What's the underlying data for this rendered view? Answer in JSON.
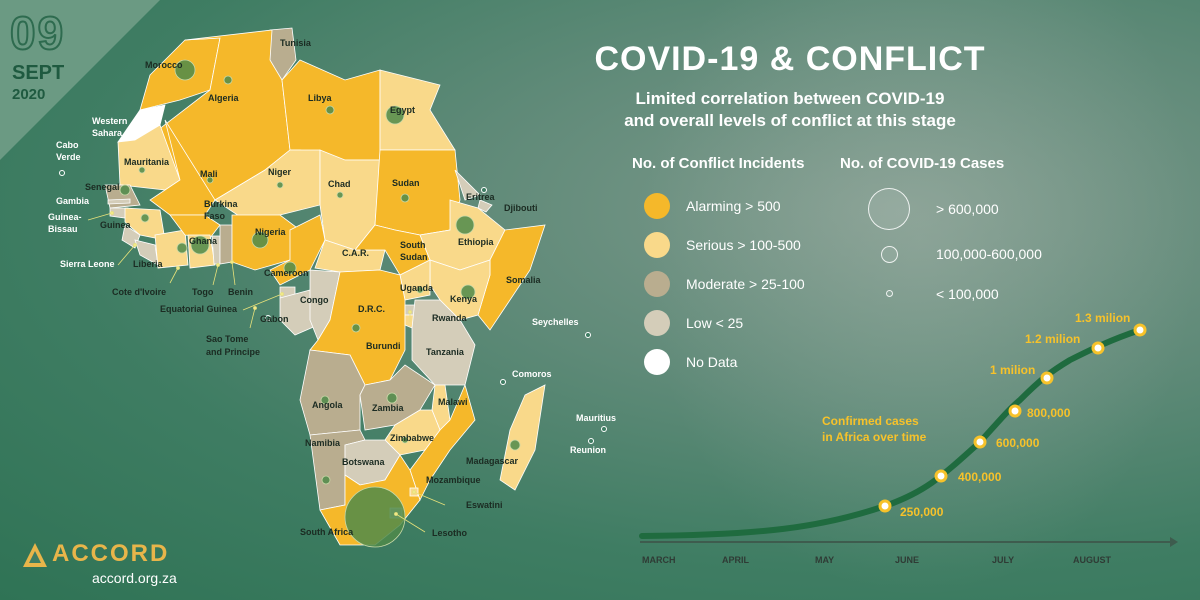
{
  "date": {
    "day": "09",
    "month": "SEPT",
    "year": "2020"
  },
  "title": "COVID-19 & CONFLICT",
  "subtitle_lines": [
    "Limited correlation between COVID-19",
    "and overall levels of conflict at this stage"
  ],
  "colors": {
    "alarming": "#f5b82a",
    "serious": "#f9d98a",
    "moderate": "#b9ad8f",
    "low": "#d4cdb9",
    "no_data": "#ffffff",
    "accent": "#f7c22a",
    "curve": "#1f6b3f",
    "case_bubble": "#4f8a4a"
  },
  "legend_incidents": {
    "heading": "No. of Conflict Incidents",
    "items": [
      {
        "label": "Alarming > 500",
        "level": "alarming"
      },
      {
        "label": "Serious > 100-500",
        "level": "serious"
      },
      {
        "label": "Moderate > 25-100",
        "level": "moderate"
      },
      {
        "label": "Low < 25",
        "level": "low"
      },
      {
        "label": "No Data",
        "level": "no_data"
      }
    ]
  },
  "legend_cases": {
    "heading": "No. of COVID-19 Cases",
    "items": [
      {
        "label": "> 600,000",
        "size": "large"
      },
      {
        "label": "100,000-600,000",
        "size": "medium"
      },
      {
        "label": "< 100,000",
        "size": "small"
      }
    ]
  },
  "countries": [
    {
      "name": "Tunisia",
      "level": "moderate"
    },
    {
      "name": "Morocco",
      "level": "alarming"
    },
    {
      "name": "Algeria",
      "level": "alarming"
    },
    {
      "name": "Libya",
      "level": "alarming"
    },
    {
      "name": "Egypt",
      "level": "serious"
    },
    {
      "name": "Western Sahara",
      "level": "no_data"
    },
    {
      "name": "Mauritania",
      "level": "serious"
    },
    {
      "name": "Mali",
      "level": "alarming"
    },
    {
      "name": "Niger",
      "level": "serious"
    },
    {
      "name": "Chad",
      "level": "serious"
    },
    {
      "name": "Sudan",
      "level": "alarming"
    },
    {
      "name": "Eritrea",
      "level": "low"
    },
    {
      "name": "Djibouti",
      "level": "low"
    },
    {
      "name": "Senegal",
      "level": "moderate"
    },
    {
      "name": "Gambia",
      "level": "low"
    },
    {
      "name": "Guinea-Bissau",
      "level": "low"
    },
    {
      "name": "Guinea",
      "level": "serious"
    },
    {
      "name": "Sierra Leone",
      "level": "low"
    },
    {
      "name": "Liberia",
      "level": "low"
    },
    {
      "name": "Cote d'Ivoire",
      "level": "serious"
    },
    {
      "name": "Burkina Faso",
      "level": "alarming"
    },
    {
      "name": "Ghana",
      "level": "serious"
    },
    {
      "name": "Togo",
      "level": "low"
    },
    {
      "name": "Benin",
      "level": "moderate"
    },
    {
      "name": "Nigeria",
      "level": "alarming"
    },
    {
      "name": "Cameroon",
      "level": "alarming"
    },
    {
      "name": "C.A.R.",
      "level": "serious"
    },
    {
      "name": "South Sudan",
      "level": "alarming"
    },
    {
      "name": "Ethiopia",
      "level": "serious"
    },
    {
      "name": "Somalia",
      "level": "alarming"
    },
    {
      "name": "Kenya",
      "level": "serious"
    },
    {
      "name": "Uganda",
      "level": "serious"
    },
    {
      "name": "Equatorial Guinea",
      "level": "low"
    },
    {
      "name": "Gabon",
      "level": "low"
    },
    {
      "name": "Congo",
      "level": "low"
    },
    {
      "name": "D.R.C.",
      "level": "alarming"
    },
    {
      "name": "Rwanda",
      "level": "low"
    },
    {
      "name": "Burundi",
      "level": "serious"
    },
    {
      "name": "Tanzania",
      "level": "low"
    },
    {
      "name": "Angola",
      "level": "moderate"
    },
    {
      "name": "Zambia",
      "level": "moderate"
    },
    {
      "name": "Malawi",
      "level": "serious"
    },
    {
      "name": "Mozambique",
      "level": "alarming"
    },
    {
      "name": "Zimbabwe",
      "level": "serious"
    },
    {
      "name": "Namibia",
      "level": "moderate"
    },
    {
      "name": "Botswana",
      "level": "low"
    },
    {
      "name": "South Africa",
      "level": "alarming"
    },
    {
      "name": "Lesotho",
      "level": "low"
    },
    {
      "name": "Eswatini",
      "level": "serious"
    },
    {
      "name": "Madagascar",
      "level": "serious"
    }
  ],
  "map_labels": {
    "tunisia": "Tunisia",
    "morocco": "Morocco",
    "algeria": "Algeria",
    "libya": "Libya",
    "egypt": "Egypt",
    "western_sahara_1": "Western",
    "western_sahara_2": "Sahara",
    "cabo_verde_1": "Cabo",
    "cabo_verde_2": "Verde",
    "mauritania": "Mauritania",
    "mali": "Mali",
    "niger": "Niger",
    "chad": "Chad",
    "sudan": "Sudan",
    "eritrea": "Eritrea",
    "djibouti": "Djibouti",
    "senegal": "Senegal",
    "gambia": "Gambia",
    "guinea_bissau_1": "Guinea-",
    "guinea_bissau_2": "Bissau",
    "guinea": "Guinea",
    "burkina_1": "Burkina",
    "burkina_2": "Faso",
    "nigeria": "Nigeria",
    "ghana": "Ghana",
    "ethiopia": "Ethiopia",
    "south_sudan_1": "South",
    "south_sudan_2": "Sudan",
    "car": "C.A.R.",
    "sierra_leone": "Sierra Leone",
    "liberia": "Liberia",
    "cameroon": "Cameroon",
    "somalia": "Somalia",
    "cote": "Cote d'Ivoire",
    "togo": "Togo",
    "benin": "Benin",
    "congo": "Congo",
    "uganda": "Uganda",
    "kenya": "Kenya",
    "eq_guinea": "Equatorial Guinea",
    "gabon": "Gabon",
    "drc": "D.R.C.",
    "rwanda": "Rwanda",
    "seychelles": "Seychelles",
    "sao_tome_1": "Sao Tome",
    "sao_tome_2": "and Principe",
    "burundi": "Burundi",
    "tanzania": "Tanzania",
    "comoros": "Comoros",
    "angola": "Angola",
    "zambia": "Zambia",
    "malawi": "Malawi",
    "mauritius": "Mauritius",
    "zimbabwe": "Zimbabwe",
    "namibia": "Namibia",
    "reunion": "Reunion",
    "botswana": "Botswana",
    "madagascar": "Madagascar",
    "mozambique": "Mozambique",
    "eswatini": "Eswatini",
    "south_africa": "South Africa",
    "lesotho": "Lesotho"
  },
  "timeline": {
    "caption_lines": [
      "Confirmed cases",
      "in Africa over time"
    ],
    "months": [
      "MARCH",
      "APRIL",
      "MAY",
      "JUNE",
      "JULY",
      "AUGUST"
    ],
    "milestones": [
      "250,000",
      "400,000",
      "600,000",
      "800,000",
      "1 milion",
      "1.2 milion",
      "1.3 milion"
    ]
  },
  "brand": {
    "name": "ACCORD",
    "url": "accord.org.za"
  }
}
